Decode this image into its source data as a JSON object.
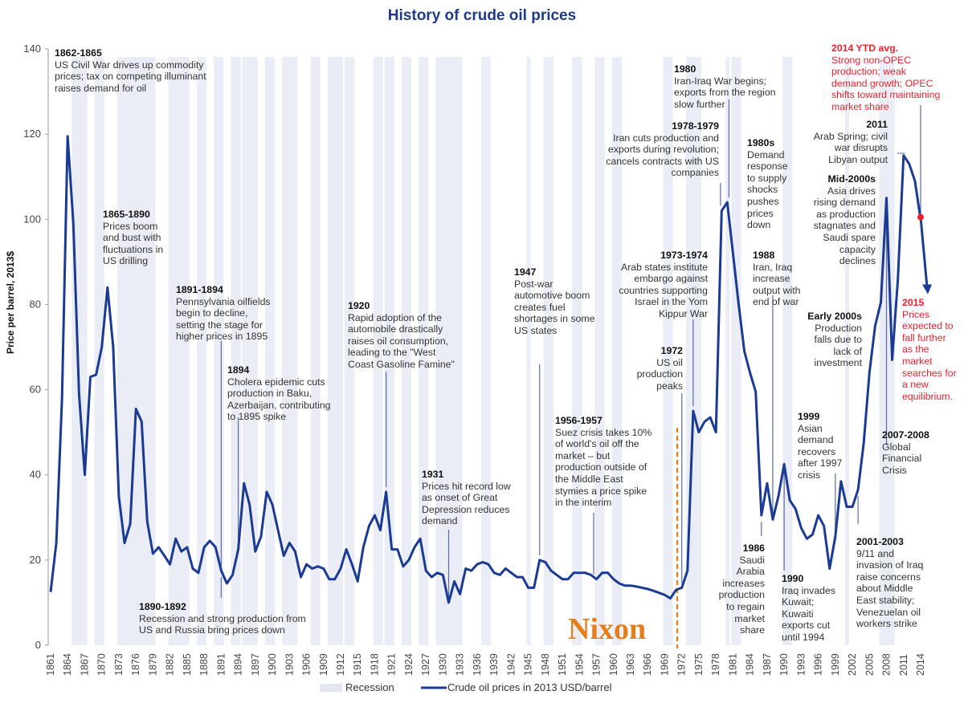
{
  "chart_data": {
    "type": "line",
    "title": "History of crude oil prices",
    "xlabel": "",
    "ylabel": "Price per barrel, 2013$",
    "ylim": [
      0,
      140
    ],
    "xlim": [
      1861,
      2014
    ],
    "yticks": [
      0,
      20,
      40,
      60,
      80,
      100,
      120,
      140
    ],
    "xticks": [
      1861,
      1864,
      1867,
      1870,
      1873,
      1876,
      1879,
      1882,
      1885,
      1888,
      1891,
      1894,
      1897,
      1900,
      1903,
      1906,
      1909,
      1912,
      1915,
      1918,
      1921,
      1924,
      1927,
      1930,
      1933,
      1936,
      1939,
      1942,
      1945,
      1948,
      1951,
      1954,
      1957,
      1960,
      1963,
      1966,
      1969,
      1972,
      1975,
      1978,
      1981,
      1984,
      1987,
      1990,
      1993,
      1996,
      1999,
      2002,
      2005,
      2008,
      2011,
      2014
    ],
    "grid": false,
    "legend_position": "bottom",
    "legend": [
      "Recession",
      "Crude oil prices in 2013 USD/barrel"
    ],
    "series": [
      {
        "name": "Crude oil prices in 2013 USD/barrel",
        "color": "#1a3a94",
        "x": [
          1861,
          1862,
          1863,
          1864,
          1865,
          1866,
          1867,
          1868,
          1869,
          1870,
          1871,
          1872,
          1873,
          1874,
          1875,
          1876,
          1877,
          1878,
          1879,
          1880,
          1881,
          1882,
          1883,
          1884,
          1885,
          1886,
          1887,
          1888,
          1889,
          1890,
          1891,
          1892,
          1893,
          1894,
          1895,
          1896,
          1897,
          1898,
          1899,
          1900,
          1901,
          1902,
          1903,
          1904,
          1905,
          1906,
          1907,
          1908,
          1909,
          1910,
          1911,
          1912,
          1913,
          1914,
          1915,
          1916,
          1917,
          1918,
          1919,
          1920,
          1921,
          1922,
          1923,
          1924,
          1925,
          1926,
          1927,
          1928,
          1929,
          1930,
          1931,
          1932,
          1933,
          1934,
          1935,
          1936,
          1937,
          1938,
          1939,
          1940,
          1941,
          1942,
          1943,
          1944,
          1945,
          1946,
          1947,
          1948,
          1949,
          1950,
          1951,
          1952,
          1953,
          1954,
          1955,
          1956,
          1957,
          1958,
          1959,
          1960,
          1961,
          1962,
          1963,
          1964,
          1965,
          1966,
          1967,
          1968,
          1969,
          1970,
          1971,
          1972,
          1973,
          1974,
          1975,
          1976,
          1977,
          1978,
          1979,
          1980,
          1981,
          1982,
          1983,
          1984,
          1985,
          1986,
          1987,
          1988,
          1989,
          1990,
          1991,
          1992,
          1993,
          1994,
          1995,
          1996,
          1997,
          1998,
          1999,
          2000,
          2001,
          2002,
          2003,
          2004,
          2005,
          2006,
          2007,
          2008,
          2009,
          2010,
          2011,
          2012,
          2013,
          2014
        ],
        "values": [
          12.5,
          24,
          58,
          119.5,
          99,
          59,
          40,
          63,
          63.5,
          70,
          84,
          70,
          35,
          24,
          28.5,
          55.5,
          52.5,
          29,
          21.5,
          23,
          21,
          19,
          25,
          22,
          23,
          18,
          17,
          23,
          24.5,
          23,
          17.5,
          14.5,
          16.5,
          22.5,
          38,
          33,
          22,
          25.5,
          36,
          33,
          27,
          21,
          24,
          22,
          16,
          19,
          18,
          18.5,
          18,
          15.5,
          15.5,
          18,
          22.5,
          19,
          15,
          23,
          28,
          30.5,
          27,
          36,
          22.5,
          22.5,
          18.5,
          20,
          23,
          25,
          17.5,
          16,
          17,
          16.5,
          10,
          15,
          12,
          18,
          17.5,
          19,
          19.5,
          19,
          17,
          16.5,
          18,
          17,
          16,
          16,
          13.5,
          13.5,
          20,
          19.5,
          17.5,
          16.5,
          15.5,
          15.5,
          17,
          17,
          17,
          16.5,
          15.5,
          17,
          17,
          15.5,
          14.5,
          14,
          14,
          13.8,
          13.5,
          13.2,
          12.8,
          12.3,
          11.8,
          11,
          13,
          13.5,
          17.5,
          55,
          50,
          52.5,
          53.5,
          50,
          102,
          104,
          92,
          80,
          69,
          64,
          59.5,
          30.5,
          38,
          29.5,
          35,
          42.5,
          34,
          32,
          27.5,
          25,
          26,
          30.5,
          28,
          18,
          25.5,
          38.5,
          32.5,
          32.5,
          36.5,
          47.5,
          64,
          75,
          80.5,
          105,
          67,
          86,
          115,
          113,
          109,
          100
        ]
      }
    ],
    "projection": {
      "from_year": 2014,
      "from_value": 100.5,
      "to_year": 2015,
      "to_value": 83,
      "color": "#1a3a94"
    },
    "ytd_marker": {
      "year": 2014,
      "value": 100.5,
      "label": "2014 YTD avg.",
      "color": "#e8212e"
    },
    "recessions": [
      [
        1865,
        1867
      ],
      [
        1869,
        1870
      ],
      [
        1873,
        1879
      ],
      [
        1882,
        1885
      ],
      [
        1887,
        1888
      ],
      [
        1890,
        1891
      ],
      [
        1893,
        1894
      ],
      [
        1895,
        1897
      ],
      [
        1899,
        1900
      ],
      [
        1902,
        1904
      ],
      [
        1907,
        1908
      ],
      [
        1910,
        1912
      ],
      [
        1913,
        1914
      ],
      [
        1918,
        1919
      ],
      [
        1920,
        1921
      ],
      [
        1923,
        1924
      ],
      [
        1926,
        1927
      ],
      [
        1929,
        1933
      ],
      [
        1937,
        1938
      ],
      [
        1945,
        1945
      ],
      [
        1948,
        1949
      ],
      [
        1953,
        1954
      ],
      [
        1957,
        1958
      ],
      [
        1960,
        1961
      ],
      [
        1969,
        1970
      ],
      [
        1973,
        1975
      ],
      [
        1980,
        1980
      ],
      [
        1981,
        1982
      ],
      [
        1990,
        1991
      ],
      [
        2001,
        2001
      ],
      [
        2007,
        2009
      ]
    ],
    "nixon_marker": {
      "year": 1971.2,
      "label": "Nixon",
      "color": "#e57f1e"
    },
    "annotations": [
      {
        "id": "a1862",
        "heading": "1862-1865",
        "text": "US Civil War drives up commodity\nprices; tax on competing illuminant\nraises demand for oil",
        "year": 1864,
        "align": "left",
        "color": "default"
      },
      {
        "id": "a1865",
        "heading": "1865-1890",
        "text": "Prices boom\nand bust with\nfluctuations in\nUS drilling",
        "align": "left",
        "color": "default"
      },
      {
        "id": "a1891",
        "heading": "1891-1894",
        "text": "Pennsylvania oilfields\nbegin to decline,\nsetting the stage for\nhigher prices in 1895",
        "year": 1891,
        "align": "left",
        "color": "default"
      },
      {
        "id": "a1894",
        "heading": "1894",
        "text": "Cholera epidemic cuts\nproduction in Baku,\nAzerbaijan, contributing\nto 1895 spike",
        "year": 1894,
        "align": "left",
        "color": "default"
      },
      {
        "id": "a1890",
        "heading": "1890-1892",
        "text": "Recession and strong production from\nUS and Russia bring prices down",
        "year": 1891,
        "align": "left",
        "color": "default"
      },
      {
        "id": "a1920",
        "heading": "1920",
        "text": "Rapid adoption of the\nautomobile drastically\nraises oil consumption,\nleading to the \"West\nCoast Gasoline Famine\"",
        "year": 1920,
        "align": "left",
        "color": "default"
      },
      {
        "id": "a1931",
        "heading": "1931",
        "text": "Prices hit record low\nas onset of Great\nDepression reduces\ndemand",
        "year": 1931,
        "align": "left",
        "color": "default"
      },
      {
        "id": "a1947",
        "heading": "1947",
        "text": "Post-war\nautomotive boom\ncreates fuel\nshortages in some\nUS states",
        "year": 1947,
        "align": "left",
        "color": "default"
      },
      {
        "id": "a1956",
        "heading": "1956-1957",
        "text": "Suez crisis takes 10%\nof world's oil off the\nmarket – but\nproduction outside of\nthe Middle East\nstymies a price spike\nin the interim",
        "year": 1956.5,
        "align": "left",
        "color": "default"
      },
      {
        "id": "a1972",
        "heading": "1972",
        "text": "US oil\nproduction\npeaks",
        "year": 1972,
        "align": "right",
        "color": "default"
      },
      {
        "id": "a1973",
        "heading": "1973-1974",
        "text": "Arab states institute\nembargo against\ncountries supporting\nIsrael in the Yom\nKippur War",
        "year": 1974,
        "align": "right",
        "color": "default"
      },
      {
        "id": "a1978",
        "heading": "1978-1979",
        "text": "Iran cuts production and\nexports during revolution;\ncancels contracts with US\ncompanies",
        "year": 1979,
        "align": "right",
        "color": "default"
      },
      {
        "id": "a1980",
        "heading": "1980",
        "text": "Iran-Iraq War begins;\nexports from the region\nslow further",
        "year": 1980,
        "align": "left",
        "color": "default"
      },
      {
        "id": "a1980s",
        "heading": "1980s",
        "text": "Demand\nresponse\nto supply\nshocks\npushes\nprices\ndown",
        "align": "left",
        "color": "default"
      },
      {
        "id": "a1986",
        "heading": "1986",
        "text": "Saudi\nArabia\nincreases\nproduction\nto regain\nmarket\nshare",
        "year": 1986,
        "align": "right",
        "color": "default"
      },
      {
        "id": "a1988",
        "heading": "1988",
        "text": "Iran, Iraq\nincrease\noutput with\nend of war",
        "year": 1988,
        "align": "left",
        "color": "default"
      },
      {
        "id": "a1990",
        "heading": "1990",
        "text": "Iraq invades\nKuwait;\nKuwaiti\nexports cut\nuntil 1994",
        "year": 1990,
        "align": "left",
        "color": "default"
      },
      {
        "id": "a1999",
        "heading": "1999",
        "text": "Asian\ndemand\nrecovers\nafter 1997\ncrisis",
        "year": 1999,
        "align": "left",
        "color": "default"
      },
      {
        "id": "a2000s",
        "heading": "Early 2000s",
        "text": "Production\nfalls due to\nlack of\ninvestment",
        "align": "right",
        "color": "default"
      },
      {
        "id": "a2001",
        "heading": "2001-2003",
        "text": "9/11 and\ninvasion of Iraq\nraise concerns\nabout Middle\nEast stability;\nVenezuelan oil\nworkers strike",
        "year": 2003,
        "align": "left",
        "color": "default"
      },
      {
        "id": "amid",
        "heading": "Mid-2000s",
        "text": "Asia drives\nrising demand\nas production\nstagnates and\nSaudi spare\ncapacity\ndeclines",
        "align": "right",
        "color": "default"
      },
      {
        "id": "a2007",
        "heading": "2007-2008",
        "text": "Global\nFinancial\nCrisis",
        "year": 2008,
        "align": "left",
        "color": "default"
      },
      {
        "id": "a2011",
        "heading": "2011",
        "text": "Arab Spring; civil\nwar disrupts\nLibyan output",
        "year": 2011,
        "align": "right",
        "color": "default"
      },
      {
        "id": "a2014",
        "heading": "2014 YTD avg.",
        "text": "Strong non-OPEC\nproduction; weak\ndemand growth; OPEC\nshifts toward maintaining\nmarket share",
        "year": 2014,
        "align": "left",
        "color": "red"
      },
      {
        "id": "a2015",
        "heading": "2015",
        "text": "Prices\nexpected to\nfall further\nas the\nmarket\nsearches for\na new\nequilibrium.",
        "align": "left",
        "color": "red"
      }
    ]
  }
}
